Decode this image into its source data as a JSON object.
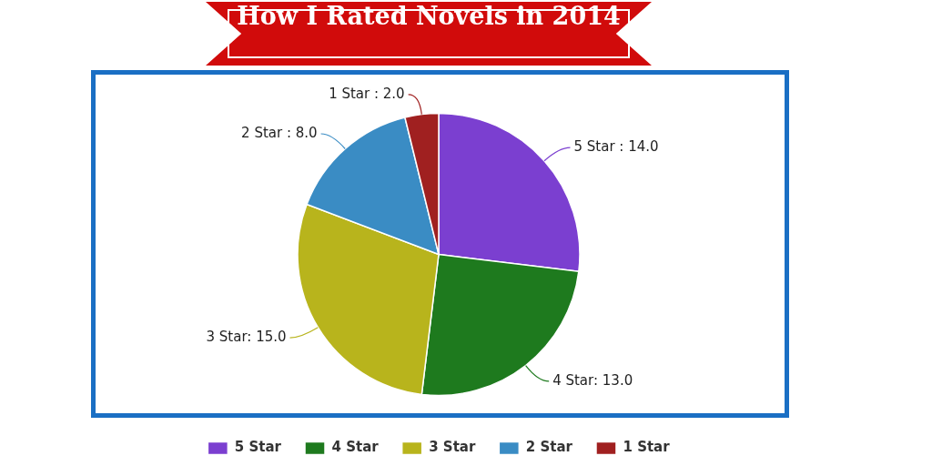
{
  "chart_data": {
    "type": "pie",
    "title": "How I Rated Novels in 2014",
    "categories": [
      "5 Star",
      "4 Star",
      "3 Star",
      "2 Star",
      "1 Star"
    ],
    "values": [
      14,
      13,
      15,
      8,
      2
    ],
    "colors": [
      "#7b3fd0",
      "#1e7a1e",
      "#b8b41c",
      "#3a8cc4",
      "#a02020"
    ],
    "value_labels": [
      "5 Star : 14.0",
      "4 Star: 13.0",
      "3 Star: 15.0",
      "2 Star : 8.0",
      "1 Star : 2.0"
    ],
    "legend": "bottom"
  }
}
